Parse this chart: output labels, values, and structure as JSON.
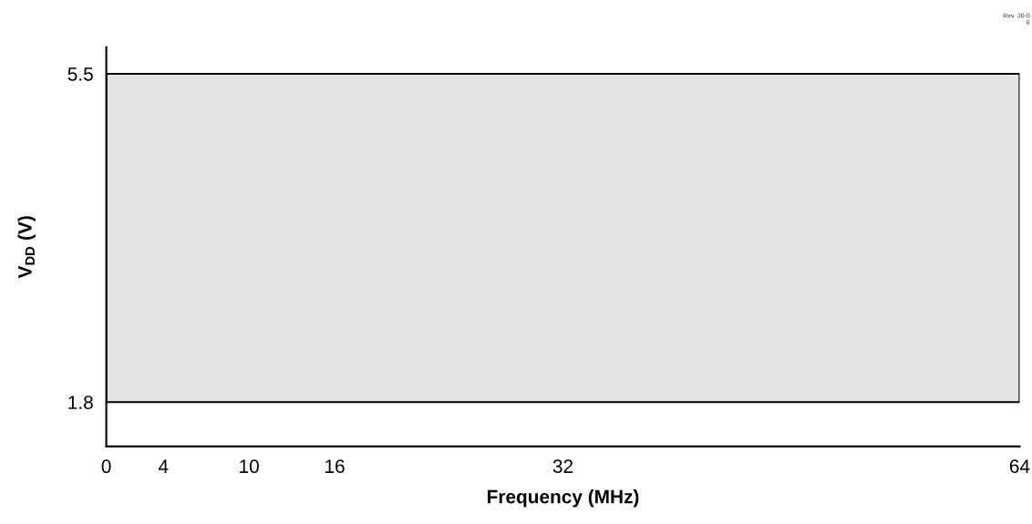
{
  "chart_data": {
    "type": "area",
    "xlabel": "Frequency (MHz)",
    "ylabel": "V$_{DD}$ (V)",
    "bands": [
      {
        "axis": "y",
        "from": 1.8,
        "to": 5.5,
        "color": "#e4e4e4"
      }
    ],
    "xlim": [
      0,
      64
    ],
    "xticks": [
      0,
      4,
      10,
      16,
      32,
      64
    ],
    "ylim": [
      1.3,
      5.8
    ],
    "yticks": [
      1.8,
      5.5
    ],
    "grid": false,
    "legend": false,
    "annotations": [
      "Rev. 30-0\n6"
    ]
  }
}
